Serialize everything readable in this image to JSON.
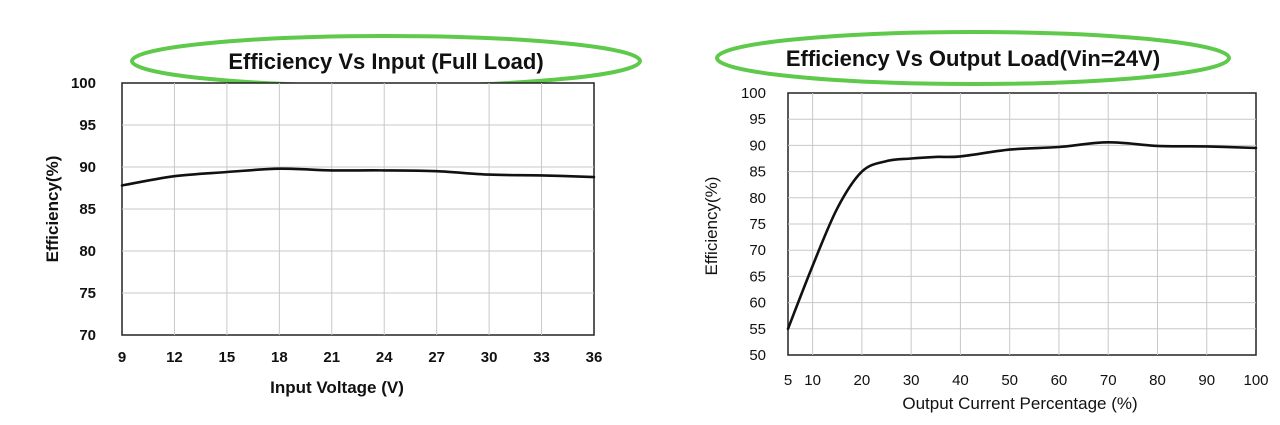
{
  "colors": {
    "ellipse": "#5ec94a",
    "grid": "#c8c8c8",
    "line": "#111111",
    "frame": "#222222"
  },
  "chart_data": [
    {
      "type": "line",
      "title": "Efficiency Vs Input (Full Load)",
      "xlabel": "Input Voltage (V)",
      "ylabel": "Efficiency(%)",
      "xlim": [
        9,
        36
      ],
      "ylim": [
        70,
        100
      ],
      "xticks": [
        9,
        12,
        15,
        18,
        21,
        24,
        27,
        30,
        33,
        36
      ],
      "yticks": [
        70,
        75,
        80,
        85,
        90,
        95,
        100
      ],
      "grid": true,
      "series": [
        {
          "x": [
            9,
            12,
            15,
            18,
            21,
            24,
            27,
            30,
            33,
            36
          ],
          "y": [
            87.8,
            88.9,
            89.4,
            89.8,
            89.6,
            89.6,
            89.5,
            89.1,
            89.0,
            88.8
          ]
        }
      ]
    },
    {
      "type": "line",
      "title": "Efficiency Vs Output Load(Vin=24V)",
      "xlabel": "Output Current Percentage (%)",
      "ylabel": "Efficiency(%)",
      "xlim": [
        5,
        100
      ],
      "ylim": [
        50,
        100
      ],
      "xticks": [
        5,
        10,
        20,
        30,
        40,
        50,
        60,
        70,
        80,
        90,
        100
      ],
      "yticks": [
        50,
        55,
        60,
        65,
        70,
        75,
        80,
        85,
        90,
        95,
        100
      ],
      "grid": true,
      "series": [
        {
          "x": [
            5,
            10,
            15,
            20,
            25,
            30,
            35,
            40,
            50,
            60,
            70,
            80,
            90,
            100
          ],
          "y": [
            55,
            67,
            78,
            85,
            87,
            87.5,
            87.8,
            87.9,
            89.2,
            89.7,
            90.6,
            89.9,
            89.8,
            89.5
          ]
        }
      ]
    }
  ]
}
